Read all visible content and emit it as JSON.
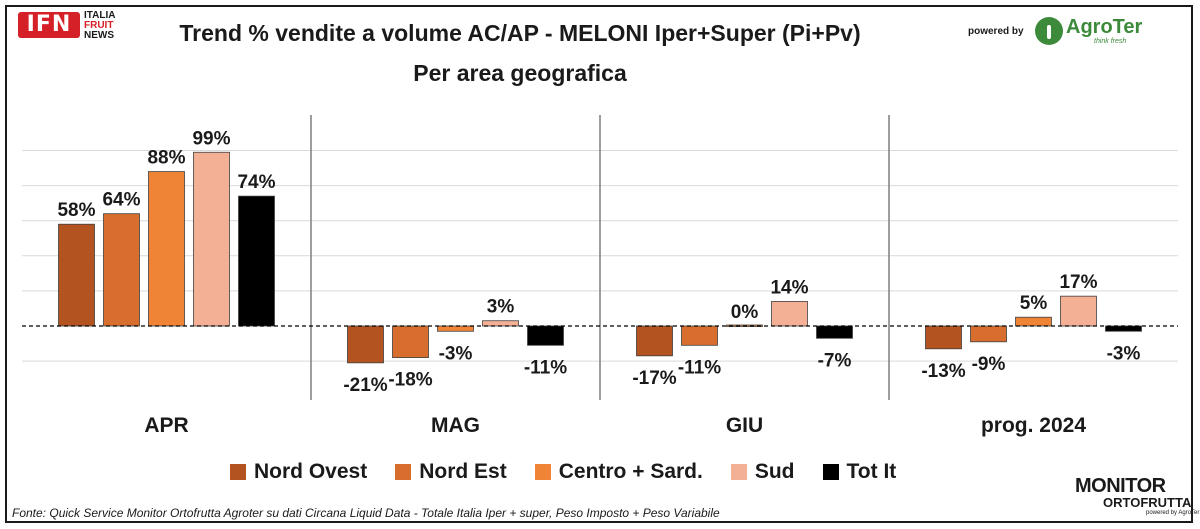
{
  "header": {
    "title": "Trend % vendite a volume AC/AP - MELONI  Iper+Super (Pi+Pv)",
    "subtitle": "Per area geografica",
    "logo_left": {
      "mark": "IFN",
      "lines": [
        "ITALIA",
        "FRUIT",
        "NEWS"
      ]
    },
    "powered_by": "powered by",
    "logo_right": {
      "name": "AgroTer",
      "tagline": "think fresh"
    }
  },
  "chart_data": {
    "type": "bar",
    "categories": [
      "APR",
      "MAG",
      "GIU",
      "prog. 2024"
    ],
    "series": [
      {
        "name": "Nord Ovest",
        "color": "#b3531f",
        "values": [
          58,
          -21,
          -17,
          -13
        ],
        "labels": [
          "58%",
          "-21%",
          "-17%",
          "-13%"
        ]
      },
      {
        "name": "Nord Est",
        "color": "#d76e2e",
        "values": [
          64,
          -18,
          -11,
          -9
        ],
        "labels": [
          "64%",
          "-18%",
          "-11%",
          "-9%"
        ]
      },
      {
        "name": "Centro + Sard.",
        "color": "#ef8436",
        "values": [
          88,
          -3,
          0,
          5
        ],
        "labels": [
          "88%",
          "-3%",
          "0%",
          "5%"
        ]
      },
      {
        "name": "Sud",
        "color": "#f4b095",
        "values": [
          99,
          3,
          14,
          17
        ],
        "labels": [
          "99%",
          "3%",
          "14%",
          "17%"
        ]
      },
      {
        "name": "Tot It",
        "color": "#000000",
        "values": [
          74,
          -11,
          -7,
          -3
        ],
        "labels": [
          "74%",
          "-11%",
          "-7%",
          "-3%"
        ]
      }
    ],
    "ylim": [
      -21,
      110
    ],
    "grid": true,
    "legend": "bottom",
    "xlabel": "",
    "ylabel": ""
  },
  "footer": {
    "source": "Fonte: Quick Service Monitor Ortofrutta Agroter su dati Circana Liquid Data - Totale Italia Iper + super, Peso Imposto + Peso Variabile",
    "logo": {
      "line1": "MONITOR",
      "line2": "ORTOFRUTTA",
      "by": "powered by AgroTer"
    }
  }
}
